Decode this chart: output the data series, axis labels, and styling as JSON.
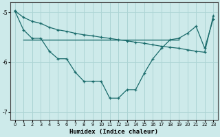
{
  "xlabel": "Humidex (Indice chaleur)",
  "background_color": "#cdeaea",
  "grid_color": "#add4d4",
  "line_color": "#1a6b6b",
  "xlim": [
    -0.5,
    23.5
  ],
  "ylim": [
    -7.15,
    -4.8
  ],
  "yticks": [
    -7,
    -6,
    -5
  ],
  "xticks": [
    0,
    1,
    2,
    3,
    4,
    5,
    6,
    7,
    8,
    9,
    10,
    11,
    12,
    13,
    14,
    15,
    16,
    17,
    18,
    19,
    20,
    21,
    22,
    23
  ],
  "line_diag_x": [
    0,
    1,
    2,
    3,
    4,
    5,
    6,
    7,
    8,
    9,
    10,
    11,
    12,
    13,
    14,
    15,
    16,
    17,
    18,
    19,
    20,
    21,
    22,
    23
  ],
  "line_diag_y": [
    -4.97,
    -5.1,
    -5.18,
    -5.22,
    -5.3,
    -5.35,
    -5.38,
    -5.42,
    -5.45,
    -5.47,
    -5.5,
    -5.52,
    -5.55,
    -5.57,
    -5.6,
    -5.62,
    -5.65,
    -5.68,
    -5.7,
    -5.72,
    -5.75,
    -5.78,
    -5.8,
    -5.07
  ],
  "line_curve_x": [
    0,
    1,
    2,
    3,
    4,
    5,
    6,
    7,
    8,
    9,
    10,
    11,
    12,
    13,
    14,
    15,
    16,
    17,
    18,
    19,
    20,
    21,
    22,
    23
  ],
  "line_curve_y": [
    -4.97,
    -5.35,
    -5.52,
    -5.52,
    -5.78,
    -5.93,
    -5.93,
    -6.2,
    -6.38,
    -6.38,
    -6.38,
    -6.72,
    -6.72,
    -6.55,
    -6.55,
    -6.22,
    -5.93,
    -5.72,
    -5.55,
    -5.52,
    -5.42,
    -5.28,
    -5.72,
    -5.13
  ],
  "hline_y": -5.55,
  "hline_x_start": 1,
  "hline_x_end": 19
}
